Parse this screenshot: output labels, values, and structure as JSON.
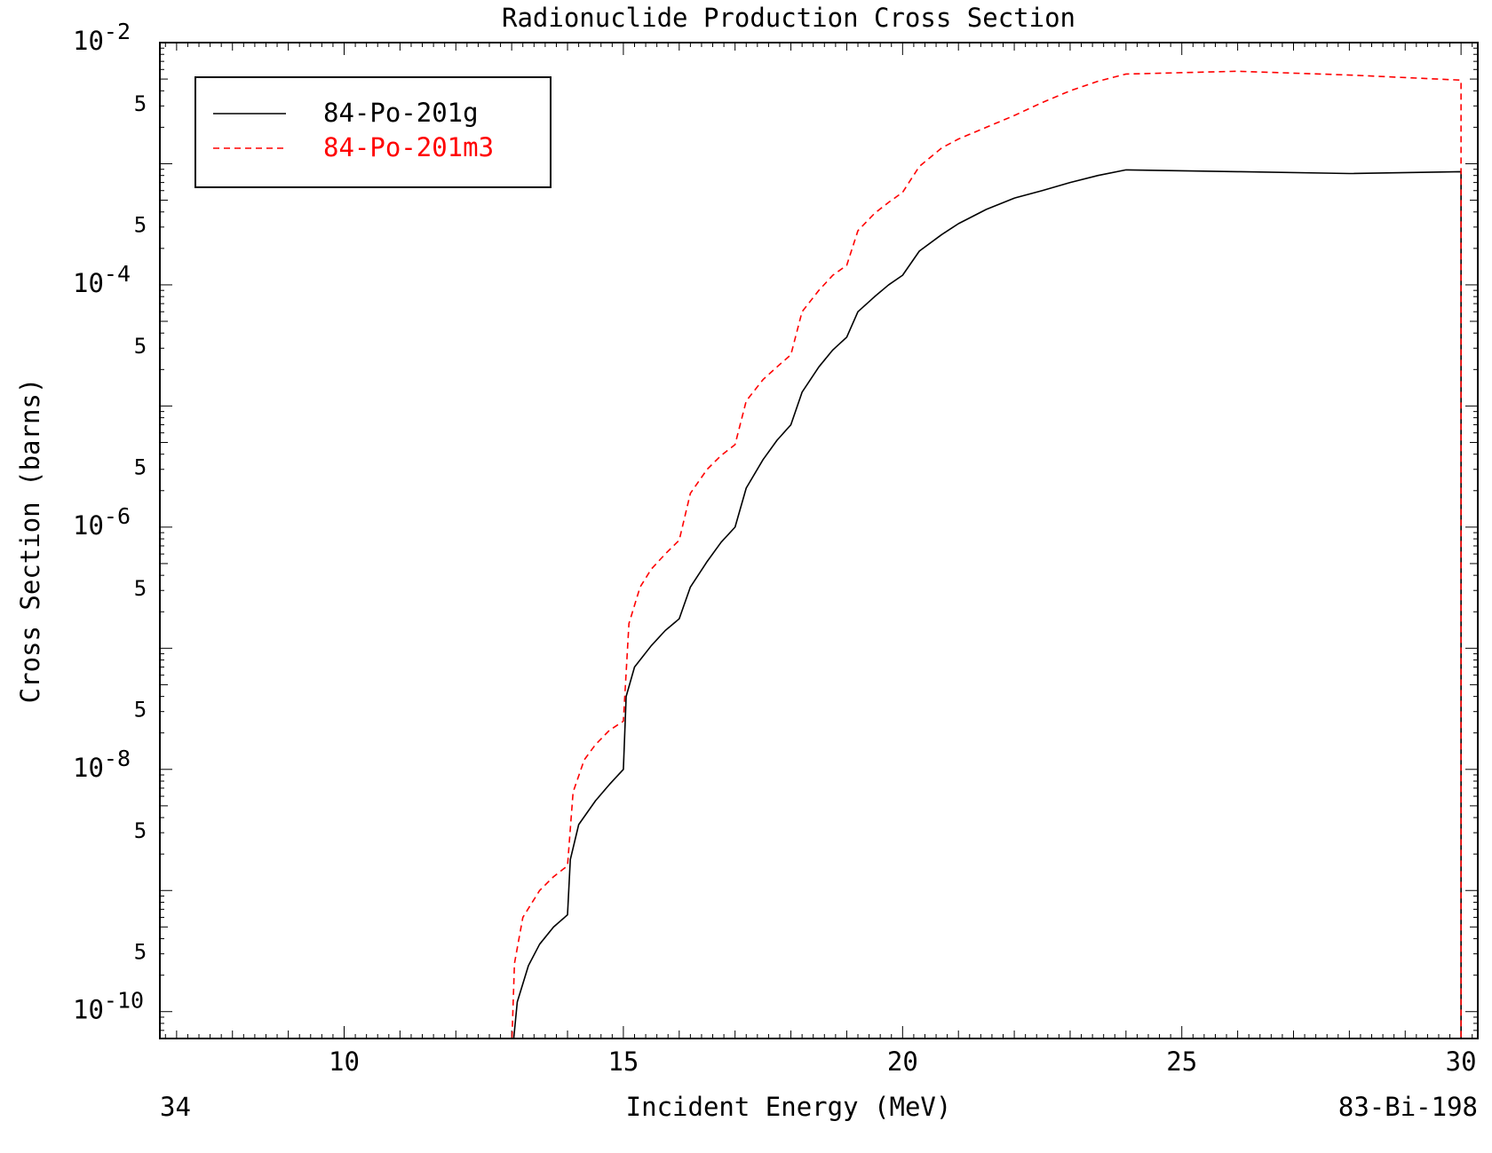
{
  "chart_data": {
    "type": "line",
    "title": "Radionuclide Production Cross Section",
    "xlabel": "Incident Energy (MeV)",
    "ylabel": "Cross Section (barns)",
    "x_scale": "linear",
    "y_scale": "log",
    "xlim": [
      6.7,
      30.3
    ],
    "ylim": [
      6e-11,
      0.01
    ],
    "x_ticks": [
      10,
      15,
      20,
      25,
      30
    ],
    "x_tick_labels": [
      "10",
      "15",
      "20",
      "25",
      "30"
    ],
    "y_decade_labels": [
      {
        "value": 0.01,
        "base": "10",
        "exp": "-2"
      },
      {
        "value": 0.0001,
        "base": "10",
        "exp": "-4"
      },
      {
        "value": 1e-06,
        "base": "10",
        "exp": "-6"
      },
      {
        "value": 1e-08,
        "base": "10",
        "exp": "-8"
      },
      {
        "value": 1e-10,
        "base": "10",
        "exp": "-10"
      }
    ],
    "y_half_labels": [
      {
        "value": 0.005,
        "label": "5"
      },
      {
        "value": 0.0005,
        "label": "5"
      },
      {
        "value": 5e-05,
        "label": "5"
      },
      {
        "value": 5e-06,
        "label": "5"
      },
      {
        "value": 5e-07,
        "label": "5"
      },
      {
        "value": 5e-08,
        "label": "5"
      },
      {
        "value": 5e-09,
        "label": "5"
      },
      {
        "value": 5e-10,
        "label": "5"
      }
    ],
    "grid": false,
    "legend_position": "top-left",
    "series": [
      {
        "name": "84-Po-201g",
        "color": "#000000",
        "dash": "solid",
        "points": [
          [
            13.0,
            4e-11
          ],
          [
            13.1,
            1.2e-10
          ],
          [
            13.3,
            2.4e-10
          ],
          [
            13.5,
            3.6e-10
          ],
          [
            13.75,
            5e-10
          ],
          [
            14.0,
            6.3e-10
          ],
          [
            14.05,
            1.8e-09
          ],
          [
            14.2,
            3.5e-09
          ],
          [
            14.5,
            5.5e-09
          ],
          [
            14.75,
            7.5e-09
          ],
          [
            15.0,
            1e-08
          ],
          [
            15.05,
            4e-08
          ],
          [
            15.2,
            7e-08
          ],
          [
            15.5,
            1.05e-07
          ],
          [
            15.75,
            1.4e-07
          ],
          [
            16.0,
            1.75e-07
          ],
          [
            16.2,
            3.2e-07
          ],
          [
            16.5,
            5.2e-07
          ],
          [
            16.75,
            7.5e-07
          ],
          [
            17.0,
            1e-06
          ],
          [
            17.2,
            2.1e-06
          ],
          [
            17.5,
            3.6e-06
          ],
          [
            17.75,
            5.2e-06
          ],
          [
            18.0,
            7e-06
          ],
          [
            18.2,
            1.3e-05
          ],
          [
            18.5,
            2.1e-05
          ],
          [
            18.75,
            2.9e-05
          ],
          [
            19.0,
            3.7e-05
          ],
          [
            19.2,
            6e-05
          ],
          [
            19.5,
            8e-05
          ],
          [
            19.75,
            0.0001
          ],
          [
            20.0,
            0.00012
          ],
          [
            20.3,
            0.00019
          ],
          [
            20.7,
            0.00026
          ],
          [
            21.0,
            0.00032
          ],
          [
            21.5,
            0.00042
          ],
          [
            22.0,
            0.00052
          ],
          [
            22.5,
            0.0006
          ],
          [
            23.0,
            0.0007
          ],
          [
            23.5,
            0.0008
          ],
          [
            24.0,
            0.00089
          ],
          [
            26.0,
            0.00086
          ],
          [
            28.0,
            0.00083
          ],
          [
            30.0,
            0.00086
          ],
          [
            30.0,
            1e-11
          ]
        ]
      },
      {
        "name": "84-Po-201m3",
        "color": "#ff0000",
        "dash": "dashed",
        "points": [
          [
            13.0,
            5e-11
          ],
          [
            13.05,
            2.5e-10
          ],
          [
            13.2,
            6e-10
          ],
          [
            13.5,
            1e-09
          ],
          [
            13.75,
            1.3e-09
          ],
          [
            14.0,
            1.6e-09
          ],
          [
            14.1,
            6.5e-09
          ],
          [
            14.3,
            1.2e-08
          ],
          [
            14.5,
            1.6e-08
          ],
          [
            14.75,
            2.1e-08
          ],
          [
            15.0,
            2.5e-08
          ],
          [
            15.1,
            1.6e-07
          ],
          [
            15.3,
            3.2e-07
          ],
          [
            15.5,
            4.5e-07
          ],
          [
            15.75,
            6e-07
          ],
          [
            16.0,
            7.8e-07
          ],
          [
            16.2,
            1.9e-06
          ],
          [
            16.5,
            3e-06
          ],
          [
            16.75,
            3.9e-06
          ],
          [
            17.0,
            4.8e-06
          ],
          [
            17.2,
            1.1e-05
          ],
          [
            17.5,
            1.65e-05
          ],
          [
            17.75,
            2.1e-05
          ],
          [
            18.0,
            2.65e-05
          ],
          [
            18.2,
            6e-05
          ],
          [
            18.5,
            9e-05
          ],
          [
            18.75,
            0.00012
          ],
          [
            19.0,
            0.000145
          ],
          [
            19.2,
            0.00028
          ],
          [
            19.5,
            0.00039
          ],
          [
            19.75,
            0.00048
          ],
          [
            20.0,
            0.00058
          ],
          [
            20.3,
            0.00095
          ],
          [
            20.7,
            0.00135
          ],
          [
            21.0,
            0.0016
          ],
          [
            21.5,
            0.002
          ],
          [
            22.0,
            0.0025
          ],
          [
            22.5,
            0.0032
          ],
          [
            23.0,
            0.004
          ],
          [
            23.5,
            0.0048
          ],
          [
            24.0,
            0.0055
          ],
          [
            26.0,
            0.0058
          ],
          [
            28.0,
            0.0054
          ],
          [
            30.0,
            0.0049
          ],
          [
            30.0,
            1e-11
          ]
        ]
      }
    ],
    "footer_left": "34",
    "footer_right": "83-Bi-198"
  }
}
